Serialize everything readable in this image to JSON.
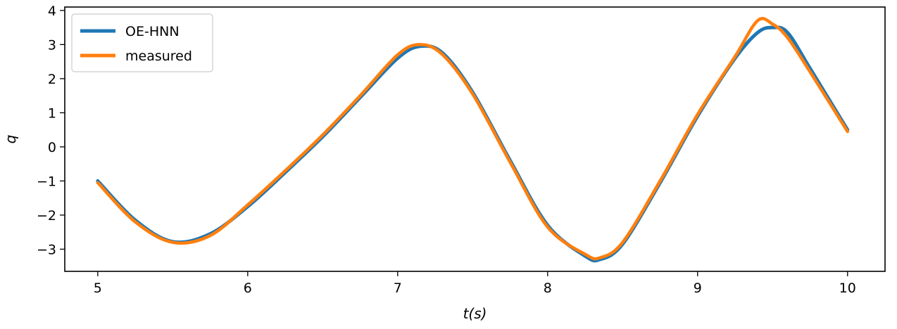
{
  "chart_data": {
    "type": "line",
    "title": "",
    "xlabel": "t(s)",
    "ylabel": "q",
    "xlim": [
      4.78,
      10.25
    ],
    "ylim": [
      -3.65,
      4.1
    ],
    "xticks": [
      5,
      6,
      7,
      8,
      9,
      10
    ],
    "yticks": [
      -3,
      -2,
      -1,
      0,
      1,
      2,
      3,
      4
    ],
    "grid": false,
    "legend_position": "top-left",
    "series": [
      {
        "name": "OE-HNN",
        "color": "#1f77b4",
        "x": [
          5.0,
          5.25,
          5.5,
          5.75,
          6.0,
          6.25,
          6.5,
          6.75,
          7.0,
          7.15,
          7.3,
          7.5,
          7.75,
          8.0,
          8.25,
          8.35,
          8.5,
          8.75,
          9.0,
          9.25,
          9.4,
          9.5,
          9.6,
          9.75,
          10.0
        ],
        "y": [
          -1.0,
          -2.15,
          -2.78,
          -2.55,
          -1.75,
          -0.75,
          0.3,
          1.45,
          2.6,
          2.95,
          2.75,
          1.6,
          -0.4,
          -2.3,
          -3.2,
          -3.3,
          -2.85,
          -1.05,
          0.9,
          2.6,
          3.35,
          3.5,
          3.35,
          2.3,
          0.5
        ]
      },
      {
        "name": "measured",
        "color": "#ff7f0e",
        "x": [
          5.0,
          5.25,
          5.5,
          5.75,
          6.0,
          6.25,
          6.5,
          6.75,
          7.0,
          7.15,
          7.3,
          7.5,
          7.75,
          8.0,
          8.25,
          8.35,
          8.5,
          8.75,
          9.0,
          9.25,
          9.4,
          9.5,
          9.6,
          9.75,
          10.0
        ],
        "y": [
          -1.05,
          -2.2,
          -2.8,
          -2.6,
          -1.7,
          -0.7,
          0.35,
          1.5,
          2.7,
          3.0,
          2.7,
          1.55,
          -0.45,
          -2.35,
          -3.15,
          -3.25,
          -2.8,
          -1.0,
          0.95,
          2.65,
          3.7,
          3.6,
          3.2,
          2.2,
          0.45
        ]
      }
    ]
  }
}
